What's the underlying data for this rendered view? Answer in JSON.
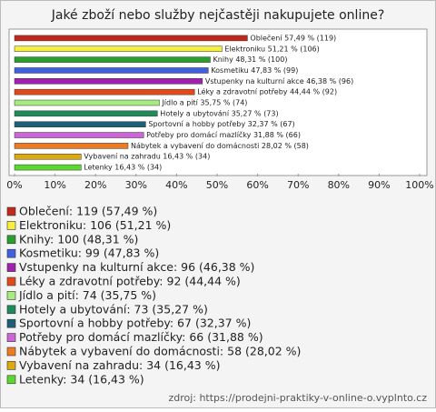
{
  "chart_data": {
    "type": "bar",
    "orientation": "horizontal",
    "title": "Jaké zboží nebo služby nejčastěji nakupujete online?",
    "categories": [
      "Oblečení",
      "Elektroniku",
      "Knihy",
      "Kosmetiku",
      "Vstupenky na kulturní akce",
      "Léky a zdravotní potřeby",
      "Jídlo a pití",
      "Hotely a ubytování",
      "Sportovní a hobby potřeby",
      "Potřeby pro domácí mazlíčky",
      "Nábytek a vybavení do domácnosti",
      "Vybavení na zahradu",
      "Letenky"
    ],
    "values": [
      57.49,
      51.21,
      48.31,
      47.83,
      46.38,
      44.44,
      35.75,
      35.27,
      32.37,
      31.88,
      28.02,
      16.43,
      16.43
    ],
    "value_labels": [
      "Oblečení 57,49 % (119)",
      "Elektroniku 51,21 % (106)",
      "Knihy 48,31 % (100)",
      "Kosmetiku 47,83 % (99)",
      "Vstupenky na kulturní akce 46,38 % (96)",
      "Léky a zdravotní potřeby 44,44 % (92)",
      "Jídlo a pití 35,75 % (74)",
      "Hotely a ubytování 35,27 % (73)",
      "Sportovní a hobby potřeby 32,37 % (67)",
      "Potřeby pro domácí mazlíčky 31,88 % (66)",
      "Nábytek a vybavení do domácnosti 28,02 % (58)",
      "Vybavení na zahradu 16,43 % (34)",
      "Letenky 16,43 % (34)"
    ],
    "legend_labels": [
      "Oblečení: 119 (57,49 %)",
      "Elektroniku: 106 (51,21 %)",
      "Knihy: 100 (48,31 %)",
      "Kosmetiku: 99 (47,83 %)",
      "Vstupenky na kulturní akce: 96 (46,38 %)",
      "Léky a zdravotní potřeby: 92 (44,44 %)",
      "Jídlo a pití: 74 (35,75 %)",
      "Hotely a ubytování: 73 (35,27 %)",
      "Sportovní a hobby potřeby: 67 (32,37 %)",
      "Potřeby pro domácí mazlíčky: 66 (31,88 %)",
      "Nábytek a vybavení do domácnosti: 58 (28,02 %)",
      "Vybavení na zahradu: 34 (16,43 %)",
      "Letenky: 34 (16,43 %)"
    ],
    "colors": [
      "#c0281c",
      "#f5f040",
      "#2aa02a",
      "#4060e0",
      "#a020b0",
      "#e04a1a",
      "#a8ec80",
      "#1f8a5a",
      "#1e5f78",
      "#cc66d8",
      "#ee7a22",
      "#dcaa10",
      "#5ad830"
    ],
    "xlim": [
      0,
      100
    ],
    "xticks": [
      {
        "value": 0,
        "label": "0%"
      },
      {
        "value": 10,
        "label": "10%"
      },
      {
        "value": 20,
        "label": "20%"
      },
      {
        "value": 30,
        "label": "30%"
      },
      {
        "value": 40,
        "label": "40%"
      },
      {
        "value": 50,
        "label": "50%"
      },
      {
        "value": 60,
        "label": "60%"
      },
      {
        "value": 70,
        "label": "70%"
      },
      {
        "value": 80,
        "label": "80%"
      },
      {
        "value": 90,
        "label": "90%"
      },
      {
        "value": 100,
        "label": "100%"
      }
    ],
    "source": "zdroj: https://prodejni-praktiky-v-online-o.vyplnto.cz"
  }
}
